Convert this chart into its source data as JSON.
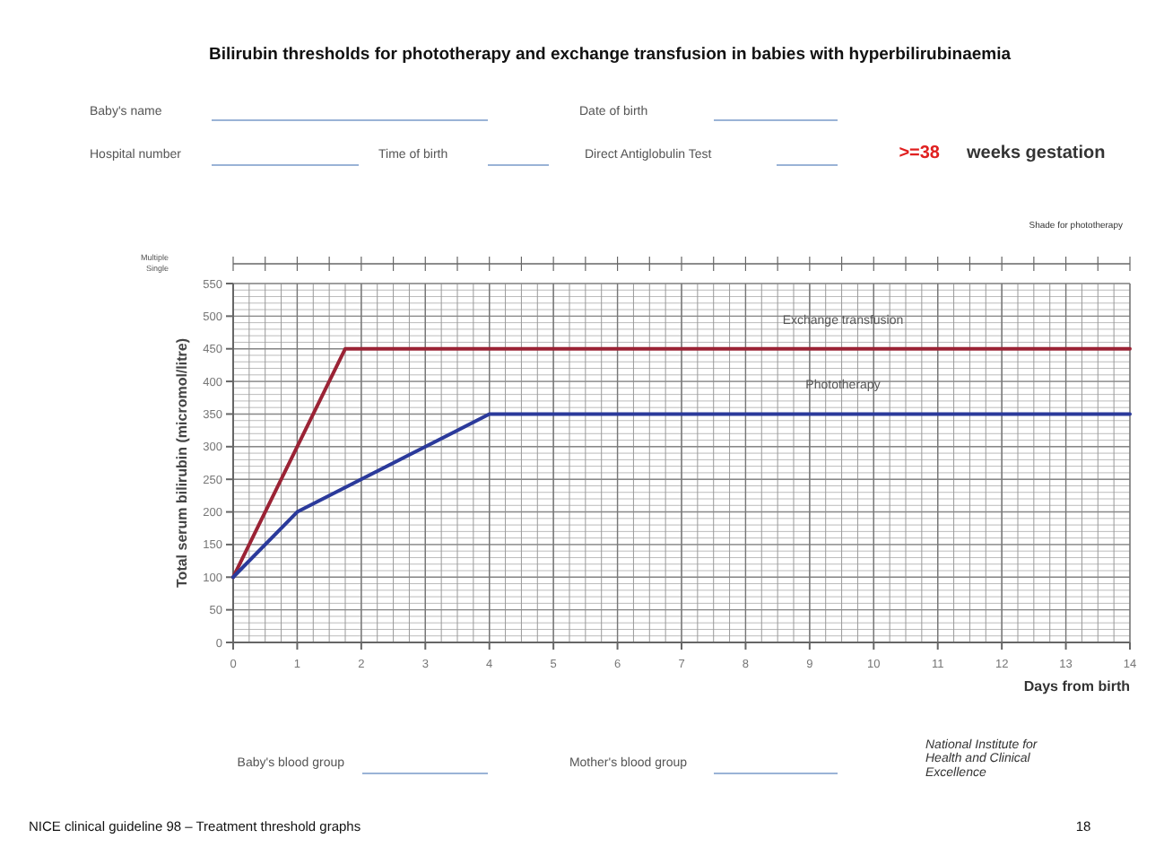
{
  "chart_data": {
    "type": "line",
    "title": "Bilirubin thresholds for phototherapy and exchange transfusion in babies with hyperbilirubinaemia",
    "xlabel": "Days from birth",
    "ylabel": "Total serum bilirubin  (micromol/litre)",
    "series": [
      {
        "name": "Exchange transfusion",
        "color": "#9b2335",
        "x": [
          0,
          1.75,
          14
        ],
        "values": [
          100,
          450,
          450
        ]
      },
      {
        "name": "Phototherapy",
        "color": "#2b3a9b",
        "x": [
          0,
          1,
          4,
          14
        ],
        "values": [
          100,
          200,
          350,
          350
        ]
      }
    ],
    "xlim": [
      0,
      14
    ],
    "xticks": [
      0,
      1,
      2,
      3,
      4,
      5,
      6,
      7,
      8,
      9,
      10,
      11,
      12,
      13,
      14
    ],
    "ylim": [
      0,
      550
    ],
    "yticks": [
      0,
      50,
      100,
      150,
      200,
      250,
      300,
      350,
      400,
      450,
      500,
      550
    ],
    "grid": true,
    "marker": "none",
    "line_style": "solid",
    "annotations": [
      "Baby's name",
      "Date of birth",
      "Hospital number",
      "Time of birth",
      "Direct Antiglobulin Test",
      ">=38",
      "weeks gestation",
      "Shade for phototherapy",
      "Multiple",
      "Single",
      "Baby's blood group",
      "Mother's blood group",
      "National Institute for Health and Clinical Excellence",
      "NICE clinical guideline 98 – Treatment threshold graphs",
      "18"
    ]
  }
}
